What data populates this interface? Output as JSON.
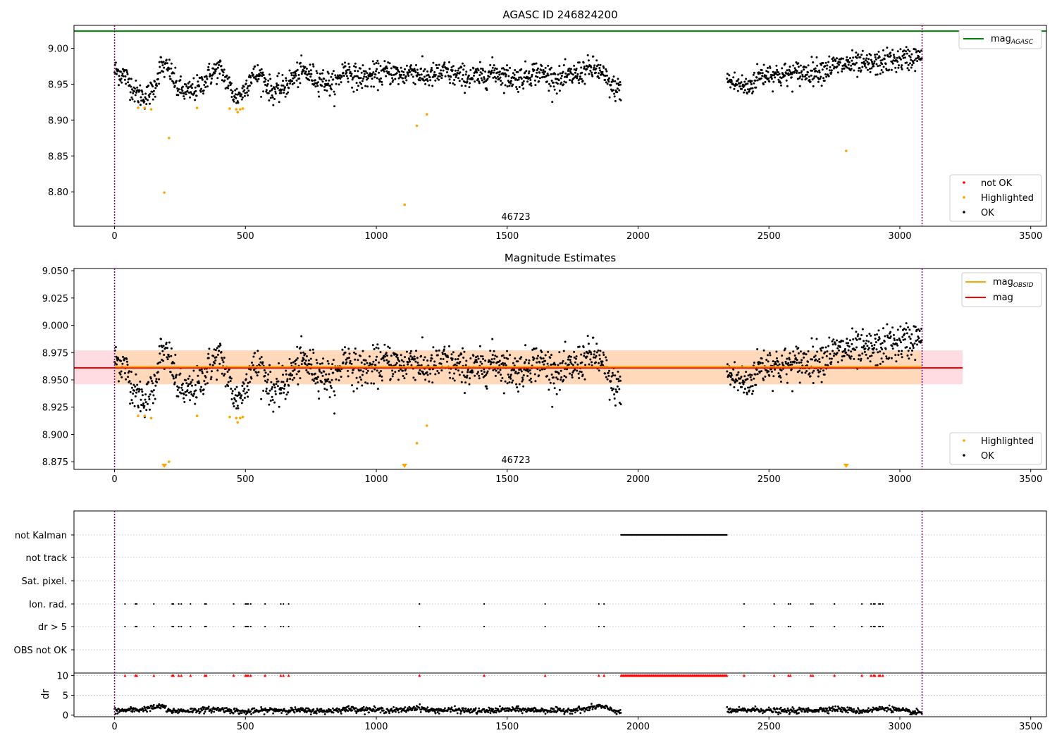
{
  "chart_data": [
    {
      "type": "scatter",
      "title": "AGASC ID 246824200",
      "xlabel": "",
      "ylabel": "",
      "xlim": [
        -155,
        3560
      ],
      "ylim": [
        8.752,
        9.032
      ],
      "xticks": [
        0,
        500,
        1000,
        1500,
        2000,
        2500,
        3000,
        3500
      ],
      "yticks": [
        8.8,
        8.85,
        8.9,
        8.95,
        9.0
      ],
      "ytick_labels": [
        "8.80",
        "8.85",
        "8.90",
        "8.95",
        "9.00"
      ],
      "vlines": [
        0,
        3085
      ],
      "reference_line": {
        "name": "mag_AGASC",
        "y": 9.024,
        "color": "#008000"
      },
      "annotation": "46723",
      "legend_top": [
        {
          "label": "mag",
          "sub": "AGASC",
          "color": "#008000",
          "kind": "line"
        }
      ],
      "legend_bottom": [
        {
          "label": "not OK",
          "color": "#ff0000",
          "kind": "dot"
        },
        {
          "label": "Highlighted",
          "color": "#ffa500",
          "kind": "dot"
        },
        {
          "label": "OK",
          "color": "#000000",
          "kind": "dot"
        }
      ],
      "highlighted_points": [
        [
          90,
          8.917
        ],
        [
          115,
          8.917
        ],
        [
          140,
          8.915
        ],
        [
          190,
          8.799
        ],
        [
          208,
          8.875
        ],
        [
          315,
          8.917
        ],
        [
          440,
          8.916
        ],
        [
          465,
          8.915
        ],
        [
          470,
          8.911
        ],
        [
          480,
          8.915
        ],
        [
          490,
          8.916
        ],
        [
          1108,
          8.782
        ],
        [
          1155,
          8.892
        ],
        [
          1193,
          8.908
        ],
        [
          2795,
          8.857
        ]
      ],
      "ok_segments": [
        [
          0,
          1935
        ],
        [
          2340,
          3085
        ]
      ],
      "ok_trend": [
        [
          0,
          8.969
        ],
        [
          40,
          8.962
        ],
        [
          80,
          8.938
        ],
        [
          120,
          8.932
        ],
        [
          150,
          8.943
        ],
        [
          175,
          8.975
        ],
        [
          210,
          8.97
        ],
        [
          240,
          8.945
        ],
        [
          280,
          8.938
        ],
        [
          320,
          8.945
        ],
        [
          360,
          8.962
        ],
        [
          400,
          8.972
        ],
        [
          430,
          8.955
        ],
        [
          460,
          8.932
        ],
        [
          490,
          8.938
        ],
        [
          520,
          8.962
        ],
        [
          560,
          8.962
        ],
        [
          600,
          8.94
        ],
        [
          640,
          8.943
        ],
        [
          680,
          8.958
        ],
        [
          720,
          8.968
        ],
        [
          760,
          8.96
        ],
        [
          800,
          8.955
        ],
        [
          840,
          8.948
        ],
        [
          880,
          8.972
        ],
        [
          920,
          8.96
        ],
        [
          960,
          8.96
        ],
        [
          1000,
          8.963
        ],
        [
          1050,
          8.967
        ],
        [
          1100,
          8.962
        ],
        [
          1140,
          8.97
        ],
        [
          1180,
          8.96
        ],
        [
          1220,
          8.962
        ],
        [
          1260,
          8.967
        ],
        [
          1300,
          8.962
        ],
        [
          1350,
          8.96
        ],
        [
          1400,
          8.96
        ],
        [
          1450,
          8.968
        ],
        [
          1500,
          8.96
        ],
        [
          1550,
          8.958
        ],
        [
          1600,
          8.967
        ],
        [
          1650,
          8.963
        ],
        [
          1700,
          8.955
        ],
        [
          1750,
          8.962
        ],
        [
          1800,
          8.97
        ],
        [
          1840,
          8.972
        ],
        [
          1870,
          8.96
        ],
        [
          1900,
          8.945
        ],
        [
          1935,
          8.943
        ],
        [
          2340,
          8.955
        ],
        [
          2380,
          8.95
        ],
        [
          2420,
          8.945
        ],
        [
          2460,
          8.962
        ],
        [
          2500,
          8.965
        ],
        [
          2550,
          8.962
        ],
        [
          2600,
          8.965
        ],
        [
          2650,
          8.967
        ],
        [
          2700,
          8.97
        ],
        [
          2750,
          8.975
        ],
        [
          2800,
          8.978
        ],
        [
          2850,
          8.976
        ],
        [
          2900,
          8.978
        ],
        [
          2950,
          8.982
        ],
        [
          3000,
          8.984
        ],
        [
          3050,
          8.987
        ],
        [
          3085,
          8.988
        ]
      ]
    },
    {
      "type": "scatter",
      "title": "Magnitude Estimates",
      "xlabel": "",
      "ylabel": "",
      "xlim": [
        -155,
        3560
      ],
      "ylim": [
        8.868,
        9.052
      ],
      "xticks": [
        0,
        500,
        1000,
        1500,
        2000,
        2500,
        3000,
        3500
      ],
      "yticks": [
        8.875,
        8.9,
        8.925,
        8.95,
        8.975,
        9.0,
        9.025,
        9.05
      ],
      "ytick_labels": [
        "8.875",
        "8.900",
        "8.925",
        "8.950",
        "8.975",
        "9.000",
        "9.025",
        "9.050"
      ],
      "vlines": [
        0,
        3085
      ],
      "annotation": "46723",
      "mag": {
        "y": 8.961,
        "band": [
          8.946,
          8.977
        ],
        "x_range": [
          -155,
          3240
        ],
        "color": "#ff0000",
        "band_color": "#ffc0cb"
      },
      "mag_obsid": {
        "y": 8.962,
        "band": [
          8.946,
          8.977
        ],
        "x_range": [
          0,
          3085
        ],
        "color": "#ffa500",
        "band_color": "#ffd8b0"
      },
      "legend_top": [
        {
          "label": "mag",
          "sub": "OBSID",
          "color": "#ffa500",
          "kind": "line"
        },
        {
          "label": "mag",
          "sub": "",
          "color": "#ff0000",
          "kind": "line"
        }
      ],
      "legend_bottom": [
        {
          "label": "Highlighted",
          "color": "#ffa500",
          "kind": "dot"
        },
        {
          "label": "OK",
          "color": "#000000",
          "kind": "dot"
        }
      ],
      "highlighted_points": [
        [
          90,
          8.917
        ],
        [
          115,
          8.917
        ],
        [
          140,
          8.915
        ],
        [
          208,
          8.875
        ],
        [
          315,
          8.917
        ],
        [
          440,
          8.916
        ],
        [
          465,
          8.915
        ],
        [
          470,
          8.911
        ],
        [
          480,
          8.915
        ],
        [
          490,
          8.916
        ],
        [
          1155,
          8.892
        ],
        [
          1193,
          8.908
        ]
      ],
      "offscale_markers": [
        190,
        1108,
        2795
      ]
    },
    {
      "type": "scatter",
      "title": "",
      "xlabel": "",
      "ylabel": "",
      "xlim": [
        -155,
        3560
      ],
      "xticks": [
        0,
        500,
        1000,
        1500,
        2000,
        2500,
        3000,
        3500
      ],
      "vlines": [
        0,
        3085
      ],
      "flag_rows": [
        "not Kalman",
        "not track",
        "Sat. pixel.",
        "Ion. rad.",
        "dr > 5",
        "OBS not OK"
      ],
      "not_kalman_range": [
        1935,
        2340
      ],
      "flag_events": [
        40,
        80,
        85,
        150,
        220,
        225,
        245,
        255,
        290,
        345,
        350,
        455,
        500,
        505,
        510,
        520,
        575,
        635,
        645,
        665,
        1165,
        1412,
        1645,
        1850,
        1870,
        2405,
        2520,
        2575,
        2582,
        2660,
        2668,
        2750,
        2855,
        2890,
        2900,
        2905,
        2920,
        2925,
        2935
      ]
    },
    {
      "type": "scatter",
      "title": "",
      "xlabel": "",
      "ylabel": "dr",
      "xlim": [
        -155,
        3560
      ],
      "ylim": [
        -0.4,
        10.6
      ],
      "xticks": [
        0,
        500,
        1000,
        1500,
        2000,
        2500,
        3000,
        3500
      ],
      "yticks": [
        0,
        5,
        10
      ],
      "ytick_labels": [
        "0",
        "5",
        "10"
      ],
      "vlines": [
        0,
        3085
      ],
      "dr_segments": [
        [
          0,
          1935
        ],
        [
          2340,
          3085
        ]
      ],
      "dr_trend": [
        [
          0,
          1.1
        ],
        [
          100,
          1.4
        ],
        [
          190,
          2.3
        ],
        [
          200,
          1.0
        ],
        [
          300,
          1.2
        ],
        [
          400,
          1.5
        ],
        [
          500,
          0.8
        ],
        [
          600,
          1.3
        ],
        [
          700,
          1.2
        ],
        [
          800,
          1.0
        ],
        [
          900,
          1.6
        ],
        [
          1000,
          1.3
        ],
        [
          1100,
          1.2
        ],
        [
          1160,
          2.0
        ],
        [
          1200,
          1.2
        ],
        [
          1300,
          1.3
        ],
        [
          1400,
          1.0
        ],
        [
          1500,
          1.4
        ],
        [
          1600,
          1.3
        ],
        [
          1700,
          1.1
        ],
        [
          1800,
          1.5
        ],
        [
          1850,
          2.3
        ],
        [
          1935,
          0.7
        ],
        [
          2340,
          1.0
        ],
        [
          2450,
          1.4
        ],
        [
          2550,
          1.0
        ],
        [
          2650,
          1.2
        ],
        [
          2750,
          1.6
        ],
        [
          2850,
          1.0
        ],
        [
          2950,
          1.8
        ],
        [
          3050,
          0.6
        ],
        [
          3085,
          0.7
        ]
      ],
      "red_markers_y": 10,
      "red_markers_dense_range": [
        1935,
        2340
      ]
    }
  ],
  "colors": {
    "ok": "#000000",
    "highlighted": "#ffa500",
    "not_ok": "#ff0000",
    "vline": "#800080",
    "grid": "#b0b0b0",
    "dr_ref": "#000000"
  }
}
